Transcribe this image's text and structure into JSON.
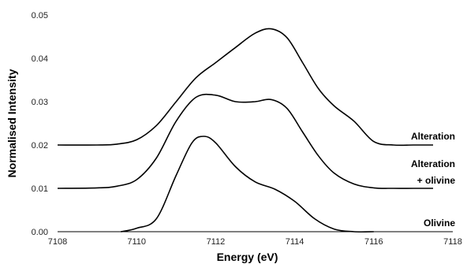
{
  "chart_data": {
    "type": "line",
    "title": "",
    "xlabel": "Energy (eV)",
    "ylabel": "Normalised Intensity",
    "xlim": [
      7108,
      7118
    ],
    "ylim": [
      0,
      0.05
    ],
    "x_ticks": [
      "7108",
      "7110",
      "7112",
      "7114",
      "7116",
      "7118"
    ],
    "y_ticks": [
      "0.00",
      "0.01",
      "0.02",
      "0.03",
      "0.04",
      "0.05"
    ],
    "grid": false,
    "legend": "none",
    "series": [
      {
        "name": "Alteration",
        "x": [
          7108.0,
          7109.0,
          7109.5,
          7110.0,
          7110.5,
          7111.0,
          7111.5,
          7112.0,
          7112.5,
          7113.0,
          7113.4,
          7113.8,
          7114.2,
          7114.6,
          7115.0,
          7115.5,
          7116.0,
          7116.5,
          7117.0,
          7117.5
        ],
        "y": [
          0.02,
          0.02,
          0.0202,
          0.0212,
          0.0245,
          0.03,
          0.0355,
          0.039,
          0.0425,
          0.0458,
          0.0468,
          0.0448,
          0.039,
          0.033,
          0.029,
          0.0255,
          0.0208,
          0.02,
          0.02,
          0.02
        ]
      },
      {
        "name": "Alteration + olivine",
        "x": [
          7108.0,
          7109.0,
          7109.5,
          7110.0,
          7110.5,
          7111.0,
          7111.5,
          7112.0,
          7112.5,
          7113.0,
          7113.4,
          7113.8,
          7114.2,
          7114.6,
          7115.0,
          7115.5,
          7116.0,
          7116.5,
          7117.0,
          7117.5
        ],
        "y": [
          0.01,
          0.0101,
          0.0105,
          0.012,
          0.017,
          0.0255,
          0.031,
          0.0315,
          0.03,
          0.03,
          0.0305,
          0.0285,
          0.023,
          0.0175,
          0.0135,
          0.011,
          0.0101,
          0.01,
          0.01,
          0.01
        ]
      },
      {
        "name": "Olivine",
        "x": [
          7108.0,
          7109.6,
          7110.0,
          7110.5,
          7111.0,
          7111.4,
          7111.7,
          7112.0,
          7112.5,
          7113.0,
          7113.5,
          7114.0,
          7114.5,
          7115.0,
          7115.5,
          7116.0,
          7117.0,
          7117.5
        ],
        "y": [
          null,
          0.0,
          0.0008,
          0.003,
          0.013,
          0.0205,
          0.022,
          0.0205,
          0.015,
          0.0115,
          0.0098,
          0.007,
          0.003,
          0.0006,
          0.0,
          0.0,
          null,
          null
        ]
      }
    ],
    "series_labels": [
      {
        "lines": [
          "Alteration"
        ]
      },
      {
        "lines": [
          "Alteration",
          "+ olivine"
        ]
      },
      {
        "lines": [
          "Olivine"
        ]
      }
    ]
  }
}
